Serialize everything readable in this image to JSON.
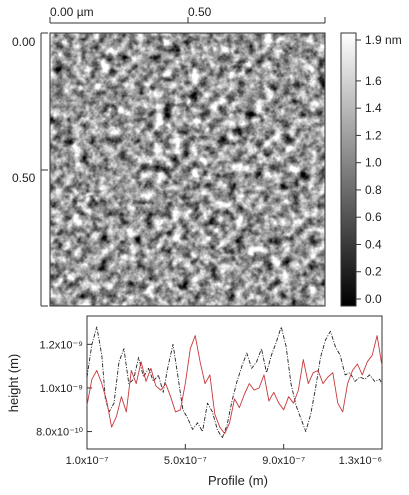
{
  "afm": {
    "x_ticks": [
      "0.00 µm",
      "0.50"
    ],
    "y_ticks": [
      "0.00",
      "0.50"
    ],
    "colorbar": {
      "ticks": [
        "1.9 nm",
        "1.6",
        "1.4",
        "1.2",
        "1.0",
        "0.8",
        "0.6",
        "0.4",
        "0.2",
        "0.0"
      ],
      "tick_values": [
        1.9,
        1.6,
        1.4,
        1.2,
        1.0,
        0.8,
        0.6,
        0.4,
        0.2,
        0.0
      ],
      "range": [
        0.0,
        1.9
      ],
      "colormap": "grayscale"
    }
  },
  "chart_data": {
    "type": "line",
    "xlabel": "Profile (m)",
    "ylabel": "height (m)",
    "x_tick_labels": [
      "1.0x10⁻⁷",
      "5.0x10⁻⁷",
      "9.0x10⁻⁷",
      "1.3x10⁻⁶"
    ],
    "x_ticks": [
      1e-07,
      5e-07,
      9e-07,
      1.3e-06
    ],
    "y_tick_labels": [
      "1.2x10⁻⁹",
      "1.0x10⁻⁹",
      "8.0x10⁻¹⁰"
    ],
    "y_ticks": [
      1.2e-09,
      1e-09,
      8e-10
    ],
    "xlim": [
      1e-07,
      1.3e-06
    ],
    "ylim": [
      7.2e-10,
      1.33e-09
    ],
    "grid": false,
    "series": [
      {
        "color": "#222222",
        "dash": "dashdot",
        "x": [
          1e-07,
          1.2e-07,
          1.4e-07,
          1.6e-07,
          1.75e-07,
          1.9e-07,
          2.1e-07,
          2.3e-07,
          2.5e-07,
          2.7e-07,
          2.9e-07,
          3.1e-07,
          3.3e-07,
          3.5e-07,
          3.7e-07,
          3.9e-07,
          4.1e-07,
          4.3e-07,
          4.5e-07,
          4.7e-07,
          4.9e-07,
          5.1e-07,
          5.3e-07,
          5.5e-07,
          5.7e-07,
          5.9e-07,
          6.1e-07,
          6.3e-07,
          6.5e-07,
          6.7e-07,
          6.9e-07,
          7.1e-07,
          7.3e-07,
          7.5e-07,
          7.7e-07,
          7.9e-07,
          8.1e-07,
          8.3e-07,
          8.5e-07,
          8.7e-07,
          8.9e-07,
          9.1e-07,
          9.3e-07,
          9.5e-07,
          9.7e-07,
          9.9e-07,
          1.01e-06,
          1.03e-06,
          1.05e-06,
          1.07e-06,
          1.09e-06,
          1.11e-06,
          1.13e-06,
          1.15e-06,
          1.17e-06,
          1.19e-06,
          1.21e-06,
          1.23e-06,
          1.25e-06,
          1.27e-06,
          1.29e-06,
          1.3e-06
        ],
        "y": [
          1.05e-09,
          1.2e-09,
          1.28e-09,
          1.15e-09,
          9.5e-10,
          8.9e-10,
          9.3e-10,
          1.12e-09,
          1.18e-09,
          1.02e-09,
          1.04e-09,
          1.14e-09,
          1.05e-09,
          1.09e-09,
          1.03e-09,
          1.06e-09,
          9.8e-10,
          1.1e-09,
          1.2e-09,
          1.05e-09,
          9e-10,
          8.6e-10,
          8.1e-10,
          8.4e-10,
          8e-10,
          9.3e-10,
          8.9e-10,
          8.1e-10,
          7.7e-10,
          8.3e-10,
          9.4e-10,
          1.03e-09,
          1.1e-09,
          1.16e-09,
          1.09e-09,
          1.12e-09,
          1.18e-09,
          1.07e-09,
          1.15e-09,
          1.21e-09,
          1.28e-09,
          1.19e-09,
          1.02e-09,
          9.2e-10,
          8.6e-10,
          8e-10,
          8.8e-10,
          1e-09,
          1.14e-09,
          1.22e-09,
          1.26e-09,
          1.19e-09,
          1.15e-09,
          1.06e-09,
          1.07e-09,
          1.03e-09,
          1.05e-09,
          1.04e-09,
          1.06e-09,
          1.03e-09,
          1.04e-09,
          1.02e-09
        ]
      },
      {
        "color": "#c8383c",
        "dash": "solid",
        "x": [
          1e-07,
          1.2e-07,
          1.4e-07,
          1.6e-07,
          1.8e-07,
          2e-07,
          2.2e-07,
          2.4e-07,
          2.6e-07,
          2.8e-07,
          3e-07,
          3.2e-07,
          3.4e-07,
          3.6e-07,
          3.8e-07,
          4e-07,
          4.2e-07,
          4.4e-07,
          4.6e-07,
          4.8e-07,
          5e-07,
          5.2e-07,
          5.4e-07,
          5.6e-07,
          5.8e-07,
          6e-07,
          6.2e-07,
          6.4e-07,
          6.6e-07,
          6.8e-07,
          7e-07,
          7.2e-07,
          7.4e-07,
          7.6e-07,
          7.8e-07,
          8e-07,
          8.2e-07,
          8.4e-07,
          8.6e-07,
          8.8e-07,
          9e-07,
          9.2e-07,
          9.4e-07,
          9.6e-07,
          9.8e-07,
          1e-06,
          1.02e-06,
          1.04e-06,
          1.06e-06,
          1.08e-06,
          1.1e-06,
          1.12e-06,
          1.14e-06,
          1.16e-06,
          1.18e-06,
          1.2e-06,
          1.22e-06,
          1.24e-06,
          1.26e-06,
          1.28e-06,
          1.3e-06
        ],
        "y": [
          9.2e-10,
          1.04e-09,
          1.08e-09,
          1.02e-09,
          9.4e-10,
          8.2e-10,
          8.7e-10,
          9.6e-10,
          8.9e-10,
          1.08e-09,
          1.02e-09,
          1.12e-09,
          1.03e-09,
          1.09e-09,
          1.01e-09,
          9.9e-10,
          1.02e-09,
          9.6e-10,
          8.9e-10,
          9e-10,
          1.02e-09,
          1.18e-09,
          1.24e-09,
          1.12e-09,
          1.02e-09,
          1.06e-09,
          8.8e-10,
          8.2e-10,
          7.9e-10,
          8.4e-10,
          9.5e-10,
          9.1e-10,
          9.7e-10,
          1.02e-09,
          9.9e-10,
          1e-09,
          1.06e-09,
          9.4e-10,
          9.8e-10,
          9.3e-10,
          9e-10,
          9.6e-10,
          9.3e-10,
          9.9e-10,
          1.13e-09,
          1.02e-09,
          1.07e-09,
          1.08e-09,
          1.02e-09,
          1.05e-09,
          1.07e-09,
          9.3e-10,
          8.9e-10,
          1.02e-09,
          1.08e-09,
          1.11e-09,
          1.06e-09,
          1.12e-09,
          1.15e-09,
          1.24e-09,
          1.1e-09
        ]
      }
    ]
  }
}
